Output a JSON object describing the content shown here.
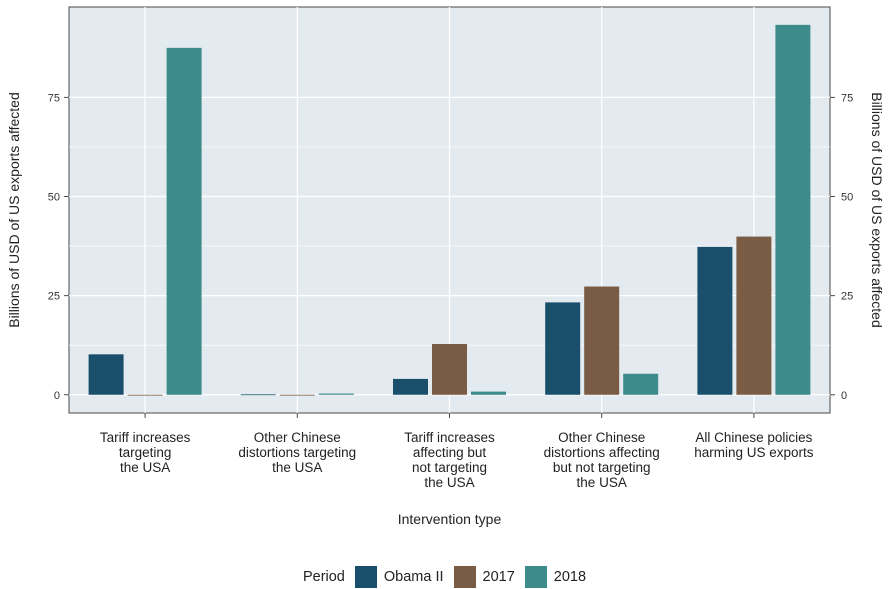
{
  "chart_data": {
    "type": "bar",
    "categories": [
      [
        "Tariff increases",
        "targeting",
        "the USA"
      ],
      [
        "Other Chinese",
        "distortions targeting",
        "the USA"
      ],
      [
        "Tariff increases",
        "affecting but",
        "not targeting",
        "the USA"
      ],
      [
        "Other Chinese",
        "distortions affecting",
        "but not targeting",
        "the USA"
      ],
      [
        "All Chinese policies",
        "harming US exports"
      ]
    ],
    "series": [
      {
        "name": "Obama II",
        "color": "#1a4f6b",
        "values": [
          10.2,
          0.1,
          4.0,
          23.3,
          37.3
        ]
      },
      {
        "name": "2017",
        "color": "#7a5c45",
        "values": [
          0.0,
          0.0,
          12.8,
          27.3,
          39.9
        ]
      },
      {
        "name": "2018",
        "color": "#3d8b8a",
        "values": [
          87.5,
          0.3,
          0.8,
          5.3,
          93.3
        ]
      }
    ],
    "xlabel": "Intervention type",
    "ylabel_left": "Billions of USD of US exports affected",
    "ylabel_right": "Billions of USD of US exports affected",
    "ylim": [
      -4.6,
      97.8
    ],
    "yticks": [
      0,
      25,
      50,
      75
    ],
    "legend_title": "Period",
    "legend_position": "bottom",
    "grid": true,
    "background": "#e4ebf0"
  }
}
